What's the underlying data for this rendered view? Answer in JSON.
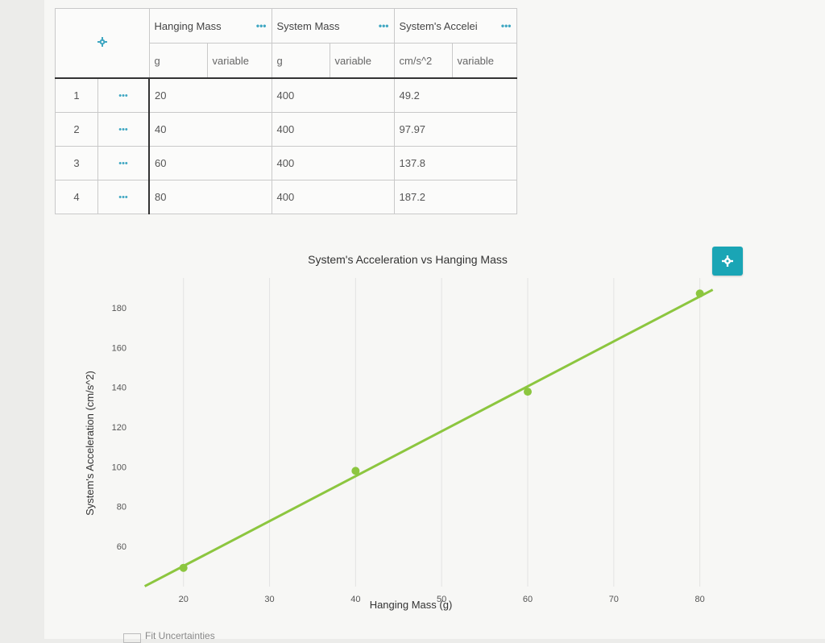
{
  "table": {
    "columns": [
      {
        "name": "Hanging Mass",
        "unit": "g",
        "type": "variable"
      },
      {
        "name": "System Mass",
        "unit": "g",
        "type": "variable"
      },
      {
        "name": "System's Accelei",
        "unit": "cm/s^2",
        "type": "variable"
      }
    ],
    "menu_glyph": "•••",
    "header_icon": "gear-icon",
    "rows": [
      {
        "num": "1",
        "hanging": "20",
        "system": "400",
        "accel": "49.2"
      },
      {
        "num": "2",
        "hanging": "40",
        "system": "400",
        "accel": "97.97"
      },
      {
        "num": "3",
        "hanging": "60",
        "system": "400",
        "accel": "137.8"
      },
      {
        "num": "4",
        "hanging": "80",
        "system": "400",
        "accel": "187.2"
      }
    ]
  },
  "chart_settings_icon": "gear-icon",
  "bottom_partial_text": "Fit Uncertainties",
  "colors": {
    "accent": "#1aa5b5",
    "series": "#8cc63f",
    "grid": "#e3e3e3"
  },
  "chart_data": {
    "type": "scatter",
    "title": "System's Acceleration vs Hanging Mass",
    "xlabel": "Hanging Mass (g)",
    "ylabel": "System's Acceleration (cm/s^2)",
    "x_ticks": [
      "20",
      "30",
      "40",
      "50",
      "60",
      "70",
      "80"
    ],
    "y_ticks": [
      "60",
      "80",
      "100",
      "120",
      "140",
      "160",
      "180"
    ],
    "xlim": [
      16,
      82
    ],
    "ylim": [
      43,
      195
    ],
    "grid": true,
    "series": [
      {
        "points": [
          {
            "x": 20,
            "y": 49.2
          },
          {
            "x": 40,
            "y": 97.97
          },
          {
            "x": 60,
            "y": 137.8
          },
          {
            "x": 80,
            "y": 187.2
          }
        ]
      }
    ],
    "fit_line": {
      "type": "linear",
      "slope": 2.26,
      "intercept": 4.9
    }
  }
}
